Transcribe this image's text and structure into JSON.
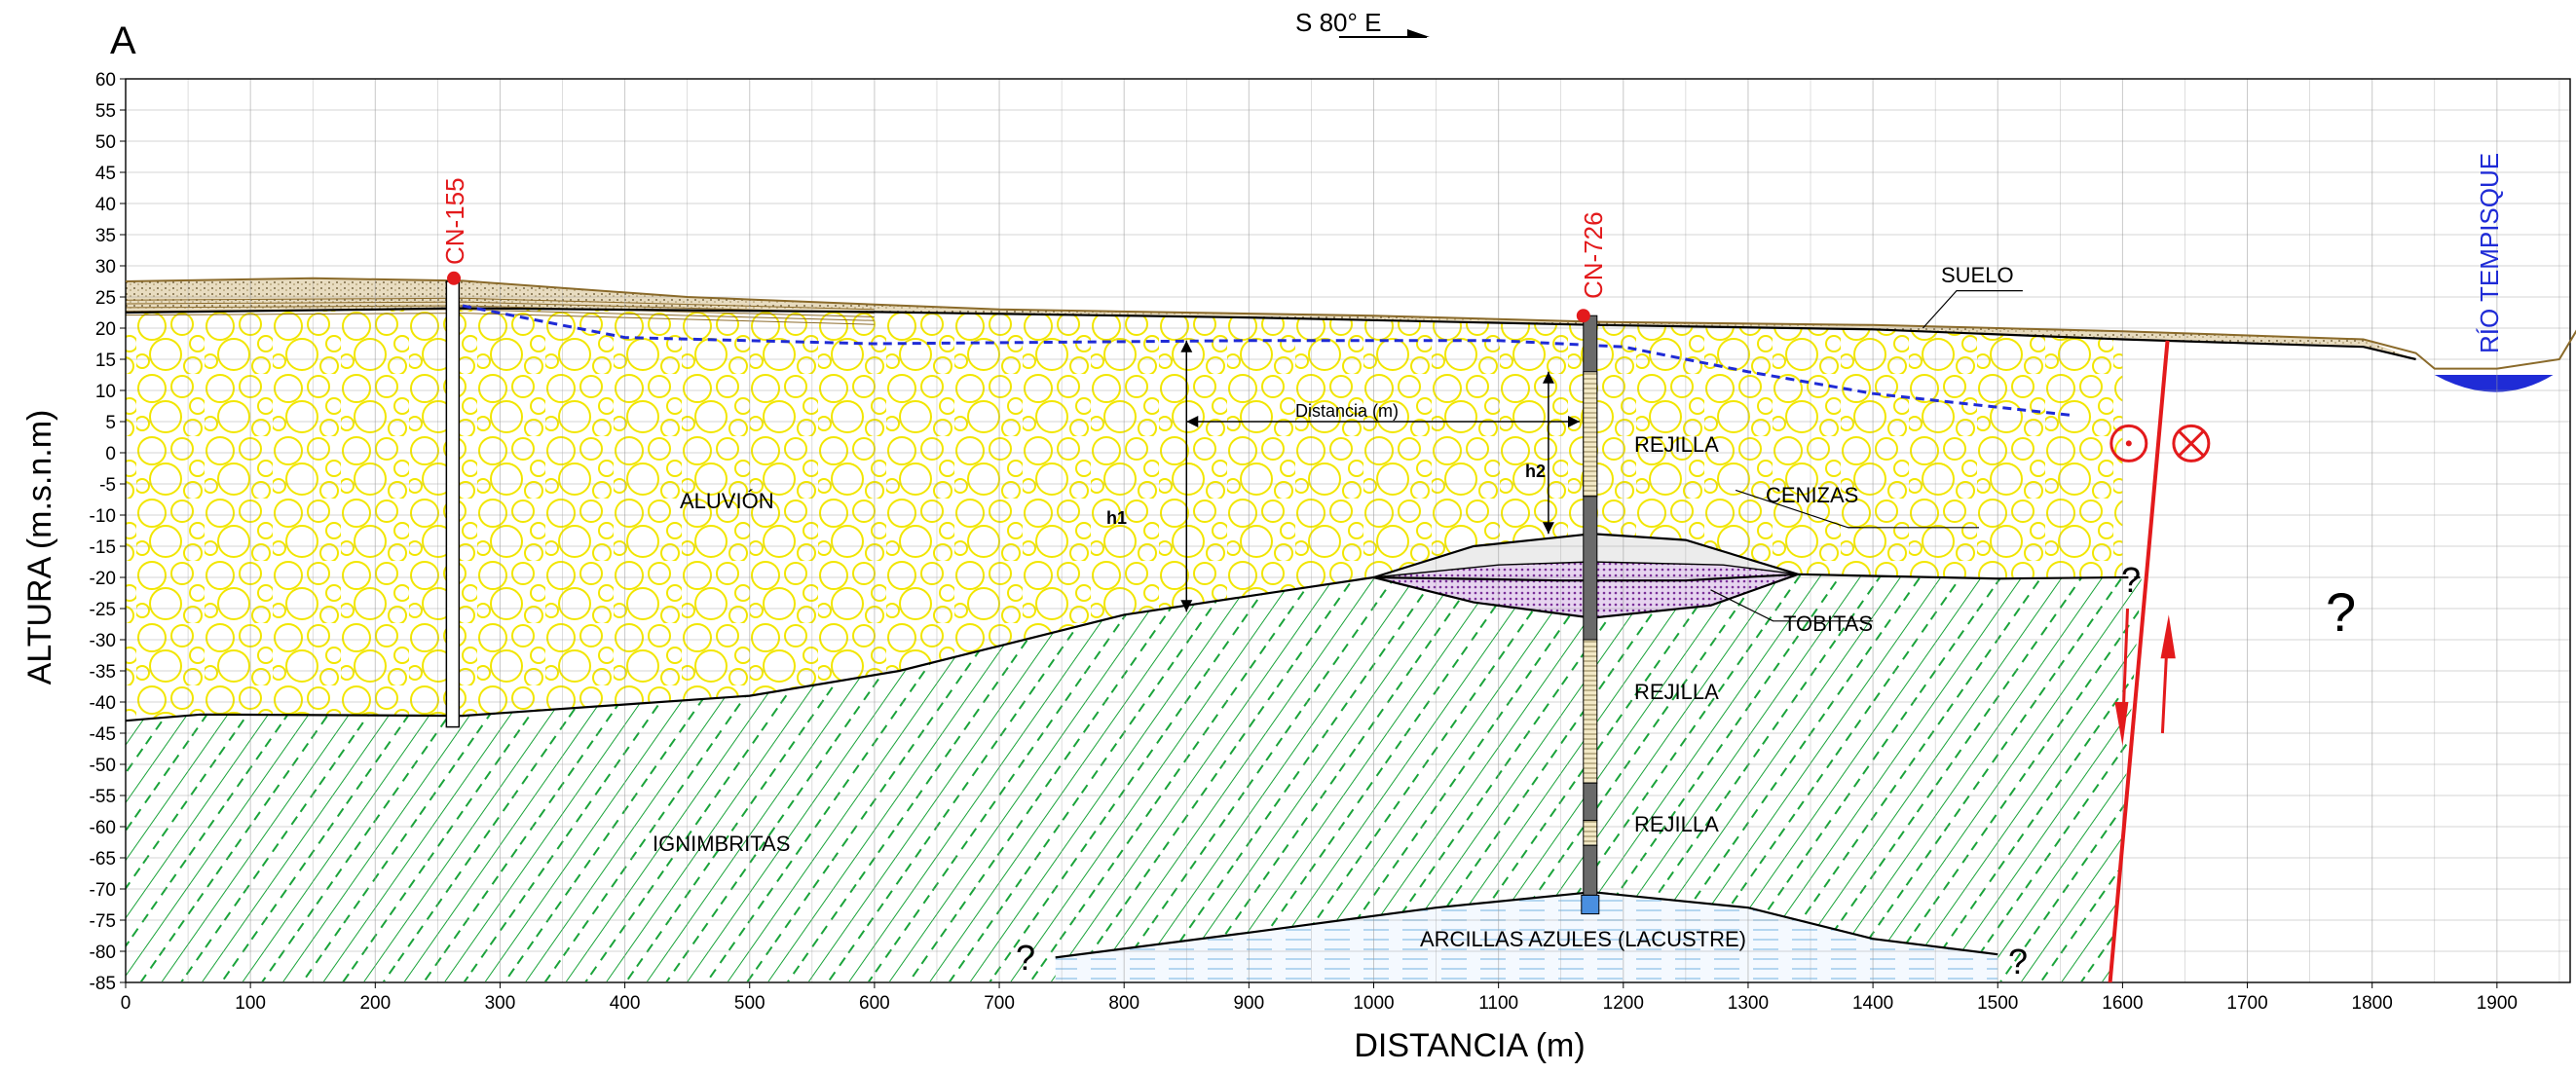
{
  "panel_label": "A",
  "orientation": "S 80° E",
  "axes": {
    "xlabel": "DISTANCIA (m)",
    "ylabel": "ALTURA (m.s.n.m)",
    "x_ticks": [
      "0",
      "100",
      "200",
      "300",
      "400",
      "500",
      "600",
      "700",
      "800",
      "900",
      "1000",
      "1100",
      "1200",
      "1300",
      "1400",
      "1500",
      "1600",
      "1700",
      "1800",
      "1900"
    ],
    "y_ticks": [
      "60",
      "55",
      "50",
      "45",
      "40",
      "35",
      "30",
      "25",
      "20",
      "15",
      "10",
      "5",
      "0",
      "-5",
      "-10",
      "-15",
      "-20",
      "-25",
      "-30",
      "-35",
      "-40",
      "-45",
      "-50",
      "-55",
      "-60",
      "-65",
      "-70",
      "-75",
      "-80",
      "-85"
    ],
    "xlim": [
      0,
      1960
    ],
    "ylim": [
      -85,
      60
    ]
  },
  "wells": {
    "cn155": "CN-155",
    "cn726": "CN-726"
  },
  "river": "RÍO TEMPISQUE",
  "units": {
    "suelo": "SUELO",
    "aluvion": "ALUVIÓN",
    "cenizas": "CENIZAS",
    "tobitas": "TOBITAS",
    "ignimbritas": "IGNIMBRITAS",
    "arcillas": "ARCILLAS AZULES (LACUSTRE)"
  },
  "screens": [
    "REJILLA",
    "REJILLA",
    "REJILLA"
  ],
  "annotations": {
    "distancia": "Distancia (m)",
    "h1": "h1",
    "h2": "h2",
    "unknown": "?"
  },
  "colors": {
    "alluvium": "#fff200",
    "ignimbrite": "#1aa33a",
    "water_table": "#1f2bd6",
    "fault": "#e31a1c",
    "tuff": "#8b3fa8",
    "soil": "#c8b07a"
  }
}
